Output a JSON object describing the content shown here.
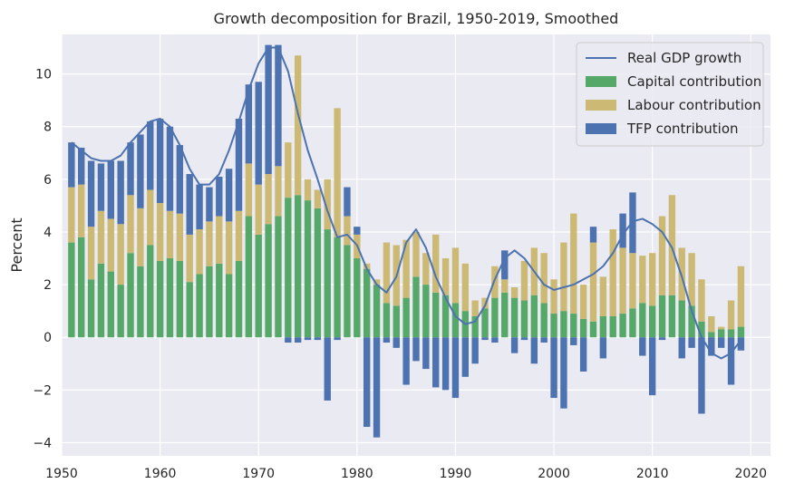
{
  "colors": {
    "plot_background": "#EAEAF2",
    "grid": "#FFFFFF",
    "capital": "#55A868",
    "labour": "#CCB974",
    "tfp": "#4C72B0",
    "gdp_line": "#4C72B0"
  },
  "chart_data": {
    "type": "bar",
    "stacked": true,
    "title": "Growth decomposition for Brazil, 1950-2019, Smoothed",
    "xlabel": "",
    "ylabel": "Percent",
    "xlim": [
      1950,
      2022
    ],
    "ylim": [
      -4.5,
      11.5
    ],
    "x_ticks": [
      1950,
      1960,
      1970,
      1980,
      1990,
      2000,
      2010,
      2020
    ],
    "y_ticks": [
      -4,
      -2,
      0,
      2,
      4,
      6,
      8,
      10
    ],
    "grid": true,
    "legend_position": "top-right",
    "x": [
      1951,
      1952,
      1953,
      1954,
      1955,
      1956,
      1957,
      1958,
      1959,
      1960,
      1961,
      1962,
      1963,
      1964,
      1965,
      1966,
      1967,
      1968,
      1969,
      1970,
      1971,
      1972,
      1973,
      1974,
      1975,
      1976,
      1977,
      1978,
      1979,
      1980,
      1981,
      1982,
      1983,
      1984,
      1985,
      1986,
      1987,
      1988,
      1989,
      1990,
      1991,
      1992,
      1993,
      1994,
      1995,
      1996,
      1997,
      1998,
      1999,
      2000,
      2001,
      2002,
      2003,
      2004,
      2005,
      2006,
      2007,
      2008,
      2009,
      2010,
      2011,
      2012,
      2013,
      2014,
      2015,
      2016,
      2017,
      2018,
      2019
    ],
    "series": [
      {
        "name": "Capital contribution",
        "kind": "bar",
        "values": [
          3.6,
          3.8,
          2.2,
          2.8,
          2.5,
          2.0,
          3.2,
          2.7,
          3.5,
          2.9,
          3.0,
          2.9,
          2.1,
          2.4,
          2.7,
          2.8,
          2.4,
          2.9,
          4.6,
          3.9,
          4.3,
          4.6,
          5.3,
          5.4,
          5.2,
          4.9,
          4.1,
          3.8,
          3.5,
          3.0,
          2.6,
          2.0,
          1.3,
          1.2,
          1.5,
          2.3,
          2.0,
          1.7,
          1.6,
          1.3,
          1.0,
          0.8,
          1.1,
          1.5,
          1.7,
          1.5,
          1.4,
          1.6,
          1.3,
          0.9,
          1.0,
          0.9,
          0.7,
          0.6,
          0.8,
          0.8,
          0.9,
          1.1,
          1.3,
          1.2,
          1.6,
          1.6,
          1.4,
          1.2,
          0.6,
          0.2,
          0.3,
          0.3,
          0.4
        ]
      },
      {
        "name": "Labour contribution",
        "kind": "bar",
        "values": [
          2.1,
          2.0,
          2.0,
          2.0,
          2.0,
          2.3,
          2.2,
          2.2,
          2.1,
          2.2,
          1.8,
          1.8,
          1.8,
          1.7,
          1.7,
          1.8,
          2.0,
          1.9,
          2.0,
          1.9,
          1.9,
          1.9,
          2.1,
          5.3,
          0.8,
          0.7,
          1.9,
          4.9,
          1.1,
          0.9,
          0.2,
          0.2,
          2.3,
          2.3,
          2.2,
          1.7,
          1.2,
          2.2,
          1.4,
          2.1,
          1.8,
          0.6,
          0.4,
          1.2,
          0.5,
          0.4,
          1.5,
          1.8,
          1.9,
          1.3,
          2.6,
          3.8,
          1.3,
          3.0,
          1.5,
          3.3,
          2.5,
          2.1,
          1.8,
          2.0,
          3.0,
          3.8,
          2.0,
          2.0,
          1.6,
          0.6,
          0.1,
          1.1,
          2.3
        ]
      },
      {
        "name": "TFP contribution",
        "kind": "bar",
        "values": [
          1.7,
          1.4,
          2.5,
          1.8,
          2.2,
          2.4,
          2.0,
          2.8,
          2.6,
          3.2,
          3.2,
          2.6,
          2.3,
          1.7,
          1.3,
          1.5,
          2.0,
          3.5,
          3.0,
          3.9,
          4.9,
          4.6,
          -0.2,
          -0.2,
          -0.1,
          -0.1,
          -2.4,
          -0.1,
          1.1,
          0.3,
          -3.4,
          -3.8,
          -0.2,
          -0.4,
          -1.8,
          -0.9,
          -1.2,
          -1.9,
          -2.0,
          -2.3,
          -1.5,
          -1.0,
          -0.1,
          -0.2,
          1.1,
          -0.6,
          -0.1,
          -1.0,
          -0.2,
          -2.3,
          -2.7,
          -0.3,
          -1.3,
          0.6,
          -0.8,
          0.0,
          1.3,
          2.3,
          -0.7,
          -2.2,
          -0.1,
          0.0,
          -0.8,
          -0.4,
          -2.9,
          -0.7,
          -0.4,
          -1.8,
          -0.5
        ]
      },
      {
        "name": "Real GDP growth",
        "kind": "line",
        "values": [
          7.4,
          7.1,
          6.8,
          6.7,
          6.7,
          6.9,
          7.4,
          7.8,
          8.2,
          8.3,
          8.0,
          7.3,
          6.4,
          5.8,
          5.8,
          6.2,
          7.1,
          8.2,
          9.4,
          10.4,
          11.0,
          11.0,
          10.1,
          8.5,
          7.1,
          6.0,
          4.8,
          3.8,
          3.9,
          3.5,
          2.6,
          2.0,
          1.7,
          2.3,
          3.6,
          4.1,
          3.4,
          2.3,
          1.5,
          0.8,
          0.5,
          0.6,
          1.2,
          2.2,
          3.0,
          3.3,
          3.0,
          2.5,
          2.0,
          1.8,
          1.9,
          2.0,
          2.2,
          2.4,
          2.7,
          3.2,
          3.9,
          4.4,
          4.5,
          4.3,
          4.0,
          3.4,
          2.3,
          1.0,
          0.0,
          -0.6,
          -0.8,
          -0.6,
          -0.1
        ]
      }
    ]
  }
}
